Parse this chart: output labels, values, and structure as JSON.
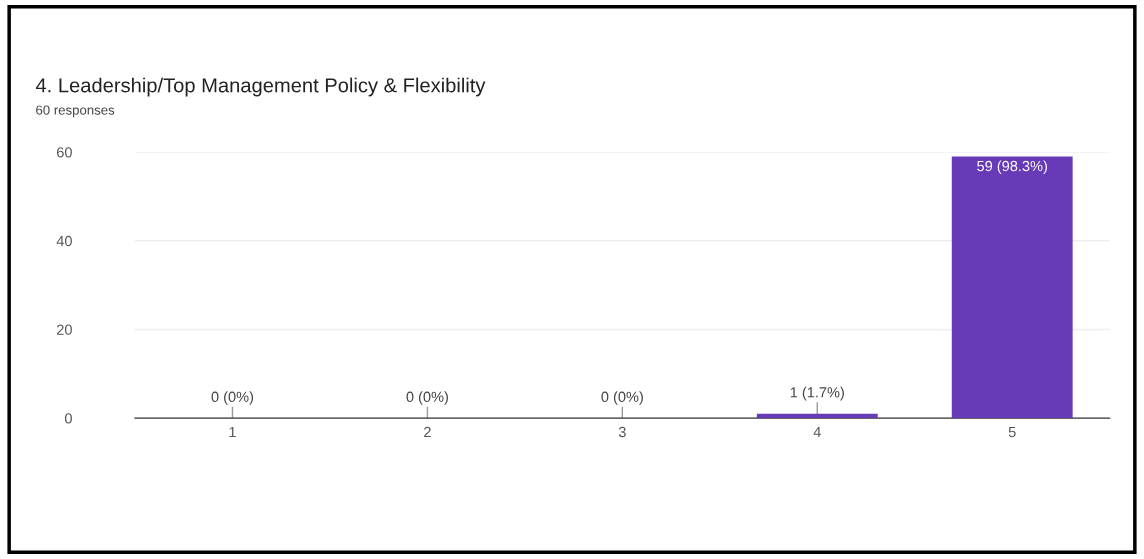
{
  "chart_data": {
    "type": "bar",
    "title": "4. Leadership/Top Management Policy & Flexibility",
    "subtitle": "60 responses",
    "categories": [
      "1",
      "2",
      "3",
      "4",
      "5"
    ],
    "values": [
      0,
      0,
      0,
      1,
      59
    ],
    "value_labels": [
      "0 (0%)",
      "0 (0%)",
      "0 (0%)",
      "1 (1.7%)",
      "59 (98.3%)"
    ],
    "color": "#673ab7",
    "ylim": [
      0,
      60
    ],
    "yticks": [
      0,
      20,
      40,
      60
    ],
    "grid": "y",
    "legend": false
  }
}
